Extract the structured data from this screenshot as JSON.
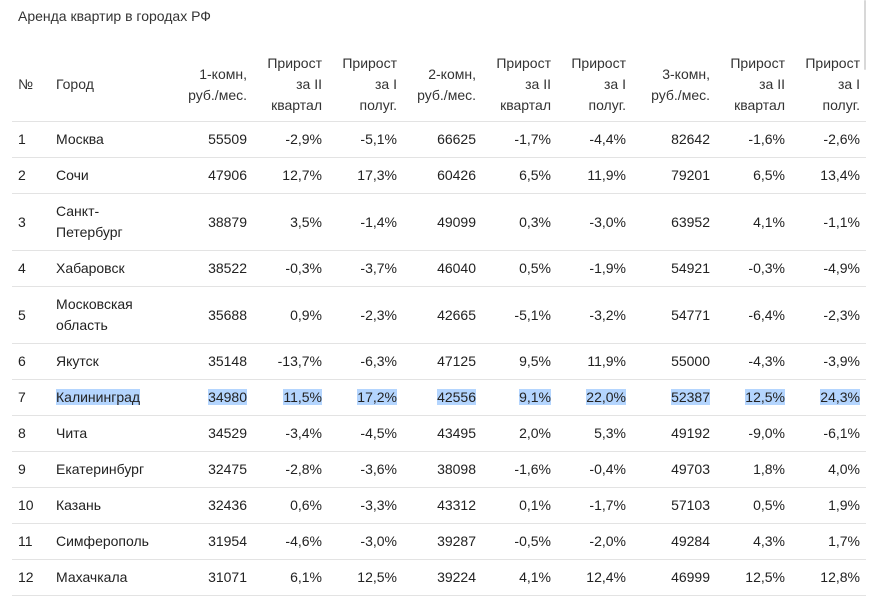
{
  "title": "Аренда квартир в городах РФ",
  "highlight_color": "#b4d5fe",
  "columns": [
    {
      "key": "num",
      "label": "№",
      "align": "l"
    },
    {
      "key": "city",
      "label": "Город",
      "align": "l"
    },
    {
      "key": "r1",
      "label": "1-комн, руб./мес.",
      "align": "r"
    },
    {
      "key": "g1q",
      "label": "Прирост за II квартал",
      "align": "r"
    },
    {
      "key": "g1h",
      "label": "Прирост за I полуг.",
      "align": "r"
    },
    {
      "key": "r2",
      "label": "2-комн, руб./мес.",
      "align": "r"
    },
    {
      "key": "g2q",
      "label": "Прирост за II квартал",
      "align": "r"
    },
    {
      "key": "g2h",
      "label": "Прирост за I полуг.",
      "align": "r"
    },
    {
      "key": "r3",
      "label": "3-комн, руб./мес.",
      "align": "r"
    },
    {
      "key": "g3q",
      "label": "Прирост за II квартал",
      "align": "r"
    },
    {
      "key": "g3h",
      "label": "Прирост за I полуг.",
      "align": "r"
    }
  ],
  "rows": [
    {
      "num": "1",
      "city": "Москва",
      "r1": "55509",
      "g1q": "-2,9%",
      "g1h": "-5,1%",
      "r2": "66625",
      "g2q": "-1,7%",
      "g2h": "-4,4%",
      "r3": "82642",
      "g3q": "-1,6%",
      "g3h": "-2,6%",
      "selected": false
    },
    {
      "num": "2",
      "city": "Сочи",
      "r1": "47906",
      "g1q": "12,7%",
      "g1h": "17,3%",
      "r2": "60426",
      "g2q": "6,5%",
      "g2h": "11,9%",
      "r3": "79201",
      "g3q": "6,5%",
      "g3h": "13,4%",
      "selected": false
    },
    {
      "num": "3",
      "city": "Санкт-Петербург",
      "r1": "38879",
      "g1q": "3,5%",
      "g1h": "-1,4%",
      "r2": "49099",
      "g2q": "0,3%",
      "g2h": "-3,0%",
      "r3": "63952",
      "g3q": "4,1%",
      "g3h": "-1,1%",
      "selected": false
    },
    {
      "num": "4",
      "city": "Хабаровск",
      "r1": "38522",
      "g1q": "-0,3%",
      "g1h": "-3,7%",
      "r2": "46040",
      "g2q": "0,5%",
      "g2h": "-1,9%",
      "r3": "54921",
      "g3q": "-0,3%",
      "g3h": "-4,9%",
      "selected": false
    },
    {
      "num": "5",
      "city": "Московская область",
      "r1": "35688",
      "g1q": "0,9%",
      "g1h": "-2,3%",
      "r2": "42665",
      "g2q": "-5,1%",
      "g2h": "-3,2%",
      "r3": "54771",
      "g3q": "-6,4%",
      "g3h": "-2,3%",
      "selected": false
    },
    {
      "num": "6",
      "city": "Якутск",
      "r1": "35148",
      "g1q": "-13,7%",
      "g1h": "-6,3%",
      "r2": "47125",
      "g2q": "9,5%",
      "g2h": "11,9%",
      "r3": "55000",
      "g3q": "-4,3%",
      "g3h": "-3,9%",
      "selected": false
    },
    {
      "num": "7",
      "city": "Калининград",
      "r1": "34980",
      "g1q": "11,5%",
      "g1h": "17,2%",
      "r2": "42556",
      "g2q": "9,1%",
      "g2h": "22,0%",
      "r3": "52387",
      "g3q": "12,5%",
      "g3h": "24,3%",
      "selected": true
    },
    {
      "num": "8",
      "city": "Чита",
      "r1": "34529",
      "g1q": "-3,4%",
      "g1h": "-4,5%",
      "r2": "43495",
      "g2q": "2,0%",
      "g2h": "5,3%",
      "r3": "49192",
      "g3q": "-9,0%",
      "g3h": "-6,1%",
      "selected": false
    },
    {
      "num": "9",
      "city": "Екатеринбург",
      "r1": "32475",
      "g1q": "-2,8%",
      "g1h": "-3,6%",
      "r2": "38098",
      "g2q": "-1,6%",
      "g2h": "-0,4%",
      "r3": "49703",
      "g3q": "1,8%",
      "g3h": "4,0%",
      "selected": false
    },
    {
      "num": "10",
      "city": "Казань",
      "r1": "32436",
      "g1q": "0,6%",
      "g1h": "-3,3%",
      "r2": "43312",
      "g2q": "0,1%",
      "g2h": "-1,7%",
      "r3": "57103",
      "g3q": "0,5%",
      "g3h": "1,9%",
      "selected": false
    },
    {
      "num": "11",
      "city": "Симферополь",
      "r1": "31954",
      "g1q": "-4,6%",
      "g1h": "-3,0%",
      "r2": "39287",
      "g2q": "-0,5%",
      "g2h": "-2,0%",
      "r3": "49284",
      "g3q": "4,3%",
      "g3h": "1,7%",
      "selected": false
    },
    {
      "num": "12",
      "city": "Махачкала",
      "r1": "31071",
      "g1q": "6,1%",
      "g1h": "12,5%",
      "r2": "39224",
      "g2q": "4,1%",
      "g2h": "12,4%",
      "r3": "46999",
      "g3q": "12,5%",
      "g3h": "12,8%",
      "selected": false
    }
  ]
}
